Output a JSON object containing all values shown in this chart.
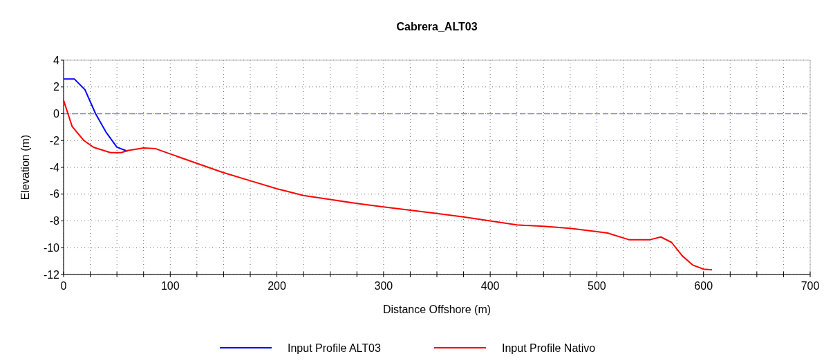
{
  "chart_data": {
    "type": "line",
    "title": "Cabrera_ALT03",
    "xlabel": "Distance Offshore (m)",
    "ylabel": "Elevation (m)",
    "xlim": [
      0,
      700
    ],
    "ylim": [
      -12,
      4
    ],
    "xticks": [
      0,
      {
        "value": 25,
        "label": null
      },
      100,
      {
        "value": 50,
        "label": null
      },
      {
        "value": 75,
        "label": null
      },
      {
        "value": 125,
        "label": null
      },
      {
        "value": 150,
        "label": null
      },
      {
        "value": 175,
        "label": null
      },
      200,
      {
        "value": 225,
        "label": null
      },
      {
        "value": 250,
        "label": null
      },
      {
        "value": 275,
        "label": null
      },
      300,
      {
        "value": 325,
        "label": null
      },
      {
        "value": 350,
        "label": null
      },
      {
        "value": 375,
        "label": null
      },
      400,
      {
        "value": 425,
        "label": null
      },
      {
        "value": 450,
        "label": null
      },
      {
        "value": 475,
        "label": null
      },
      500,
      {
        "value": 525,
        "label": null
      },
      {
        "value": 550,
        "label": null
      },
      {
        "value": 575,
        "label": null
      },
      600,
      {
        "value": 625,
        "label": null
      },
      {
        "value": 650,
        "label": null
      },
      {
        "value": 675,
        "label": null
      },
      700
    ],
    "yticks": [
      -12,
      -10,
      -8,
      -6,
      -4,
      -2,
      0,
      2,
      4
    ],
    "grid": true,
    "legend": "bottom",
    "line_style": "solid",
    "ref_lines": [
      {
        "axis": "y",
        "value": 0,
        "color": "#7f7fbf",
        "line_style": "dashed"
      }
    ],
    "series": [
      {
        "name": "Input Profile ALT03",
        "color": "#0000ff",
        "x": [
          0,
          10,
          20,
          30,
          40,
          50,
          60
        ],
        "values": [
          2.6,
          2.6,
          1.8,
          0,
          -1.4,
          -2.5,
          -2.8
        ]
      },
      {
        "name": "Input Profile Nativo",
        "color": "#ff0000",
        "x": [
          0,
          8,
          19,
          28,
          44,
          54,
          60,
          75,
          86,
          100,
          125,
          150,
          175,
          200,
          225,
          250,
          275,
          300,
          325,
          350,
          375,
          400,
          425,
          450,
          475,
          500,
          510,
          530,
          550,
          560,
          570,
          580,
          590,
          600,
          608
        ],
        "values": [
          1.0,
          -0.95,
          -2.0,
          -2.5,
          -2.9,
          -2.9,
          -2.75,
          -2.55,
          -2.6,
          -3.0,
          -3.7,
          -4.4,
          -5.0,
          -5.6,
          -6.1,
          -6.4,
          -6.7,
          -6.95,
          -7.2,
          -7.45,
          -7.7,
          -8.0,
          -8.3,
          -8.4,
          -8.55,
          -8.8,
          -8.9,
          -9.4,
          -9.4,
          -9.2,
          -9.6,
          -10.6,
          -11.3,
          -11.6,
          -11.65
        ]
      }
    ]
  }
}
